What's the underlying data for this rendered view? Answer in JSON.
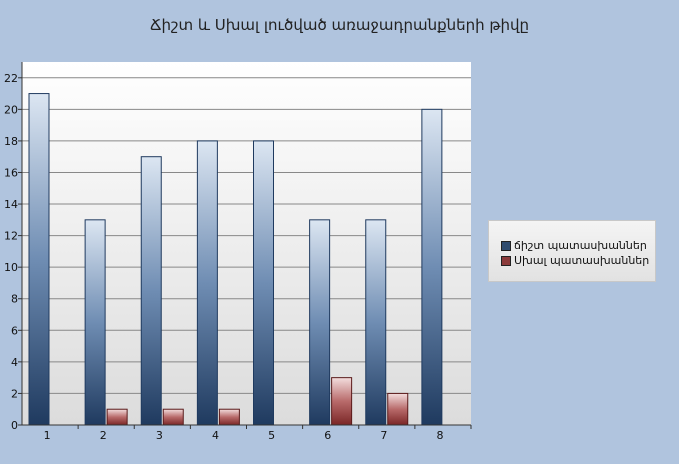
{
  "chart_data": {
    "type": "bar",
    "title": "Ճիշտ և Սխալ լուծված առաջադրանքների թիվը",
    "categories": [
      "1",
      "2",
      "3",
      "4",
      "5",
      "6",
      "7",
      "8"
    ],
    "series": [
      {
        "name": "ճիշտ պատասխաններ",
        "values": [
          21,
          13,
          17,
          18,
          18,
          13,
          13,
          20
        ],
        "color": "#2e4b6e"
      },
      {
        "name": "Սխալ պատասխաններ",
        "values": [
          0,
          1,
          1,
          1,
          0,
          3,
          2,
          0
        ],
        "color": "#8b3a3a"
      }
    ],
    "ylim": [
      0,
      23
    ],
    "yticks": [
      0,
      2,
      4,
      6,
      8,
      10,
      12,
      14,
      16,
      18,
      20,
      22
    ],
    "grid": true,
    "legend": "right"
  }
}
